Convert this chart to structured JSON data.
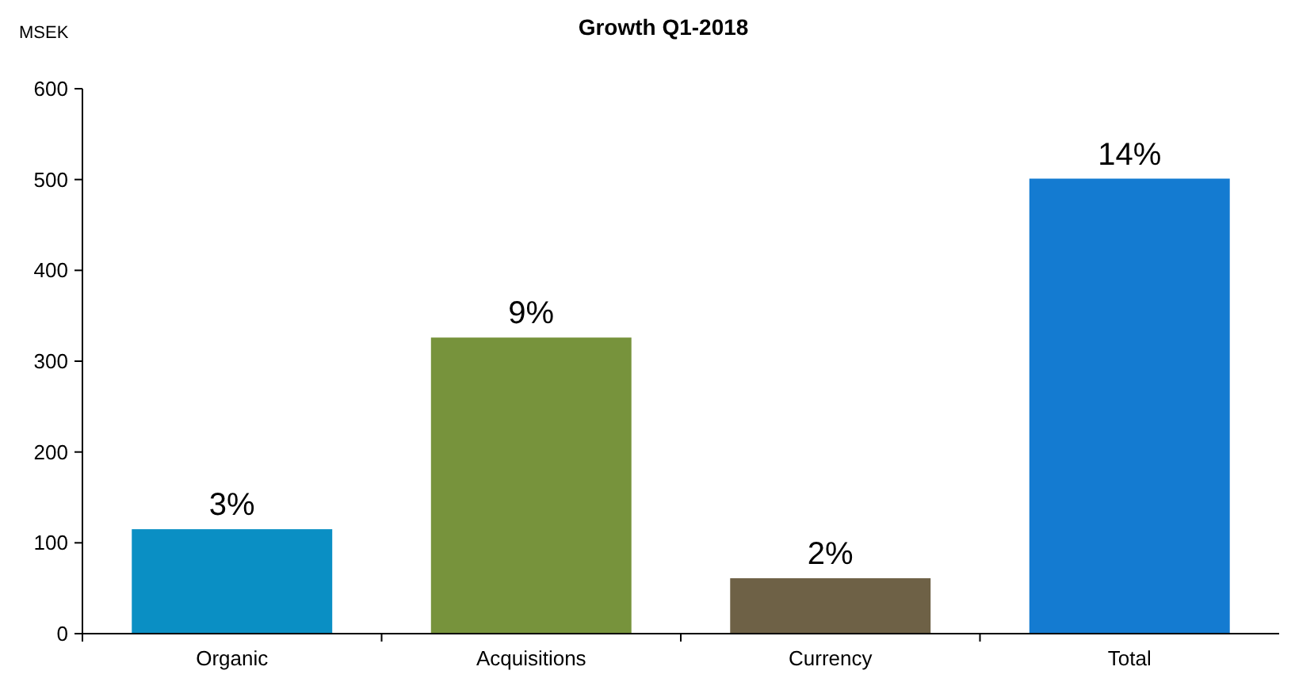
{
  "chart_data": {
    "type": "bar",
    "title": "Growth Q1-2018",
    "ylabel": "MSEK",
    "categories": [
      "Organic",
      "Acquisitions",
      "Currency",
      "Total"
    ],
    "values": [
      115,
      326,
      61,
      501
    ],
    "colors": [
      "#0a8fc4",
      "#77933c",
      "#6e6146",
      "#147bd1"
    ],
    "annotations": [
      {
        "text": "3%",
        "x": "Organic",
        "y": 115
      },
      {
        "text": "9%",
        "x": "Acquisitions",
        "y": 326
      },
      {
        "text": "2%",
        "x": "Currency",
        "y": 61
      },
      {
        "text": "14%",
        "x": "Total",
        "y": 501
      }
    ],
    "ylim": [
      0,
      600
    ],
    "yticks": [
      0,
      100,
      200,
      300,
      400,
      500,
      600
    ],
    "grid": false,
    "legend": false
  }
}
